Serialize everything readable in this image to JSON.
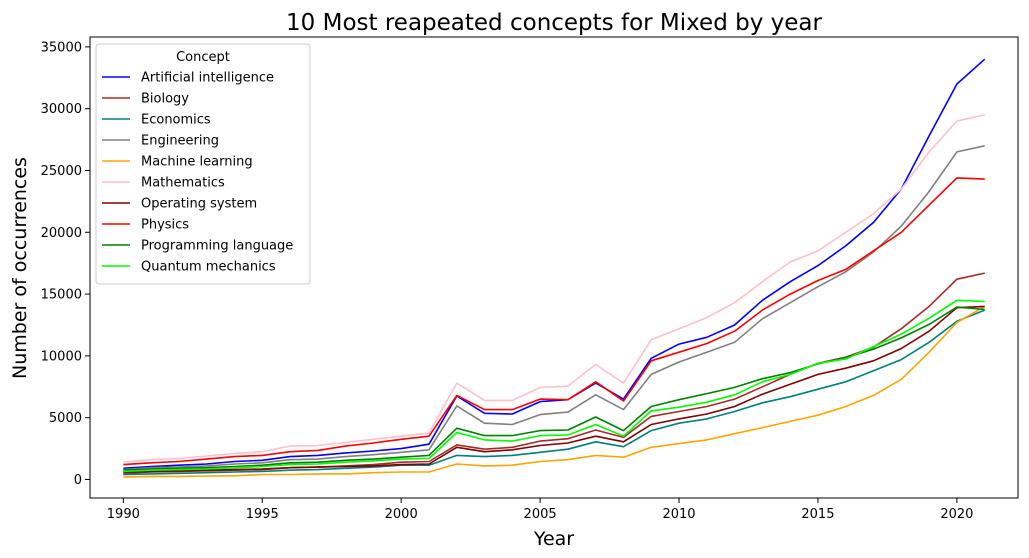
{
  "chart_data": {
    "type": "line",
    "title": "10 Most reapeated concepts for Mixed by year",
    "xlabel": "Year",
    "ylabel": "Number of occurrences",
    "xlim": [
      1988.8,
      2022.2
    ],
    "ylim": [
      -1500,
      35800
    ],
    "xticks": [
      1990,
      1995,
      2000,
      2005,
      2010,
      2015,
      2020
    ],
    "yticks": [
      0,
      5000,
      10000,
      15000,
      20000,
      25000,
      30000,
      35000
    ],
    "grid": false,
    "legend": {
      "title": "Concept",
      "position": "top-left"
    },
    "x": [
      1990,
      1991,
      1992,
      1993,
      1994,
      1995,
      1996,
      1997,
      1998,
      1999,
      2000,
      2001,
      2002,
      2003,
      2004,
      2005,
      2006,
      2007,
      2008,
      2009,
      2010,
      2011,
      2012,
      2013,
      2014,
      2015,
      2016,
      2017,
      2018,
      2019,
      2020,
      2021
    ],
    "series": [
      {
        "name": "Artificial intelligence",
        "color": "#0000ff",
        "values": [
          900,
          1050,
          1150,
          1250,
          1450,
          1550,
          1850,
          1950,
          2150,
          2300,
          2500,
          2850,
          6750,
          5350,
          5300,
          6300,
          6450,
          7800,
          6500,
          9800,
          10950,
          11500,
          12500,
          14500,
          16000,
          17300,
          18900,
          20800,
          23500,
          27800,
          32000,
          34000
        ]
      },
      {
        "name": "Biology",
        "color": "#a52a2a",
        "values": [
          500,
          600,
          650,
          700,
          750,
          800,
          950,
          1000,
          1100,
          1200,
          1400,
          1450,
          2800,
          2450,
          2600,
          3100,
          3300,
          4000,
          3400,
          5100,
          5500,
          5900,
          6500,
          7500,
          8500,
          9400,
          9900,
          10700,
          12200,
          14000,
          16200,
          16700
        ]
      },
      {
        "name": "Economics",
        "color": "#008080",
        "values": [
          400,
          450,
          500,
          550,
          600,
          650,
          750,
          800,
          900,
          1000,
          1150,
          1150,
          1950,
          1850,
          1950,
          2200,
          2450,
          3050,
          2650,
          3950,
          4550,
          4900,
          5500,
          6200,
          6700,
          7300,
          7900,
          8800,
          9700,
          11100,
          12800,
          13700
        ]
      },
      {
        "name": "Engineering",
        "color": "#808080",
        "values": [
          800,
          950,
          1000,
          1100,
          1250,
          1350,
          1600,
          1650,
          1850,
          2000,
          2200,
          2400,
          5950,
          4550,
          4450,
          5250,
          5450,
          6850,
          5650,
          8500,
          9500,
          10300,
          11100,
          13000,
          14300,
          15600,
          16800,
          18400,
          20500,
          23300,
          26500,
          27000
        ]
      },
      {
        "name": "Machine learning",
        "color": "#ffa500",
        "values": [
          200,
          250,
          250,
          280,
          300,
          400,
          400,
          450,
          450,
          550,
          600,
          600,
          1250,
          1100,
          1150,
          1450,
          1600,
          1950,
          1800,
          2600,
          2900,
          3200,
          3700,
          4200,
          4700,
          5200,
          5900,
          6800,
          8100,
          10300,
          12700,
          14000
        ]
      },
      {
        "name": "Mathematics",
        "color": "#ffc0cb",
        "values": [
          1400,
          1600,
          1700,
          1900,
          2100,
          2250,
          2700,
          2750,
          3000,
          3250,
          3500,
          3750,
          7800,
          6400,
          6400,
          7450,
          7550,
          9300,
          7800,
          11300,
          12200,
          13100,
          14300,
          16000,
          17600,
          18500,
          20000,
          21500,
          23500,
          26500,
          29000,
          29500
        ]
      },
      {
        "name": "Operating system",
        "color": "#800000",
        "values": [
          600,
          650,
          700,
          750,
          800,
          850,
          950,
          1000,
          1050,
          1100,
          1200,
          1250,
          2600,
          2250,
          2400,
          2750,
          2950,
          3500,
          3050,
          4450,
          4900,
          5300,
          5900,
          6900,
          7700,
          8500,
          9000,
          9600,
          10600,
          12000,
          13900,
          14000
        ]
      },
      {
        "name": "Physics",
        "color": "#ff0000",
        "values": [
          1200,
          1350,
          1450,
          1650,
          1850,
          1950,
          2250,
          2350,
          2700,
          2950,
          3250,
          3500,
          6800,
          5650,
          5650,
          6500,
          6450,
          7900,
          6350,
          9600,
          10300,
          11000,
          12000,
          13700,
          15000,
          16100,
          17000,
          18500,
          20000,
          22200,
          24400,
          24300
        ]
      },
      {
        "name": "Programming language",
        "color": "#008000",
        "values": [
          750,
          850,
          900,
          950,
          1050,
          1150,
          1350,
          1400,
          1550,
          1650,
          1800,
          1950,
          4150,
          3550,
          3550,
          3950,
          4000,
          5050,
          3950,
          5900,
          6450,
          6950,
          7450,
          8150,
          8650,
          9350,
          9850,
          10550,
          11450,
          12550,
          13950,
          13750
        ]
      },
      {
        "name": "Quantum mechanics",
        "color": "#00ff00",
        "values": [
          650,
          750,
          800,
          850,
          950,
          1050,
          1200,
          1250,
          1400,
          1500,
          1650,
          1700,
          3800,
          3200,
          3100,
          3550,
          3600,
          4450,
          3500,
          5550,
          5850,
          6250,
          6850,
          7900,
          8500,
          9400,
          9750,
          10750,
          11750,
          13050,
          14500,
          14400
        ]
      }
    ]
  }
}
